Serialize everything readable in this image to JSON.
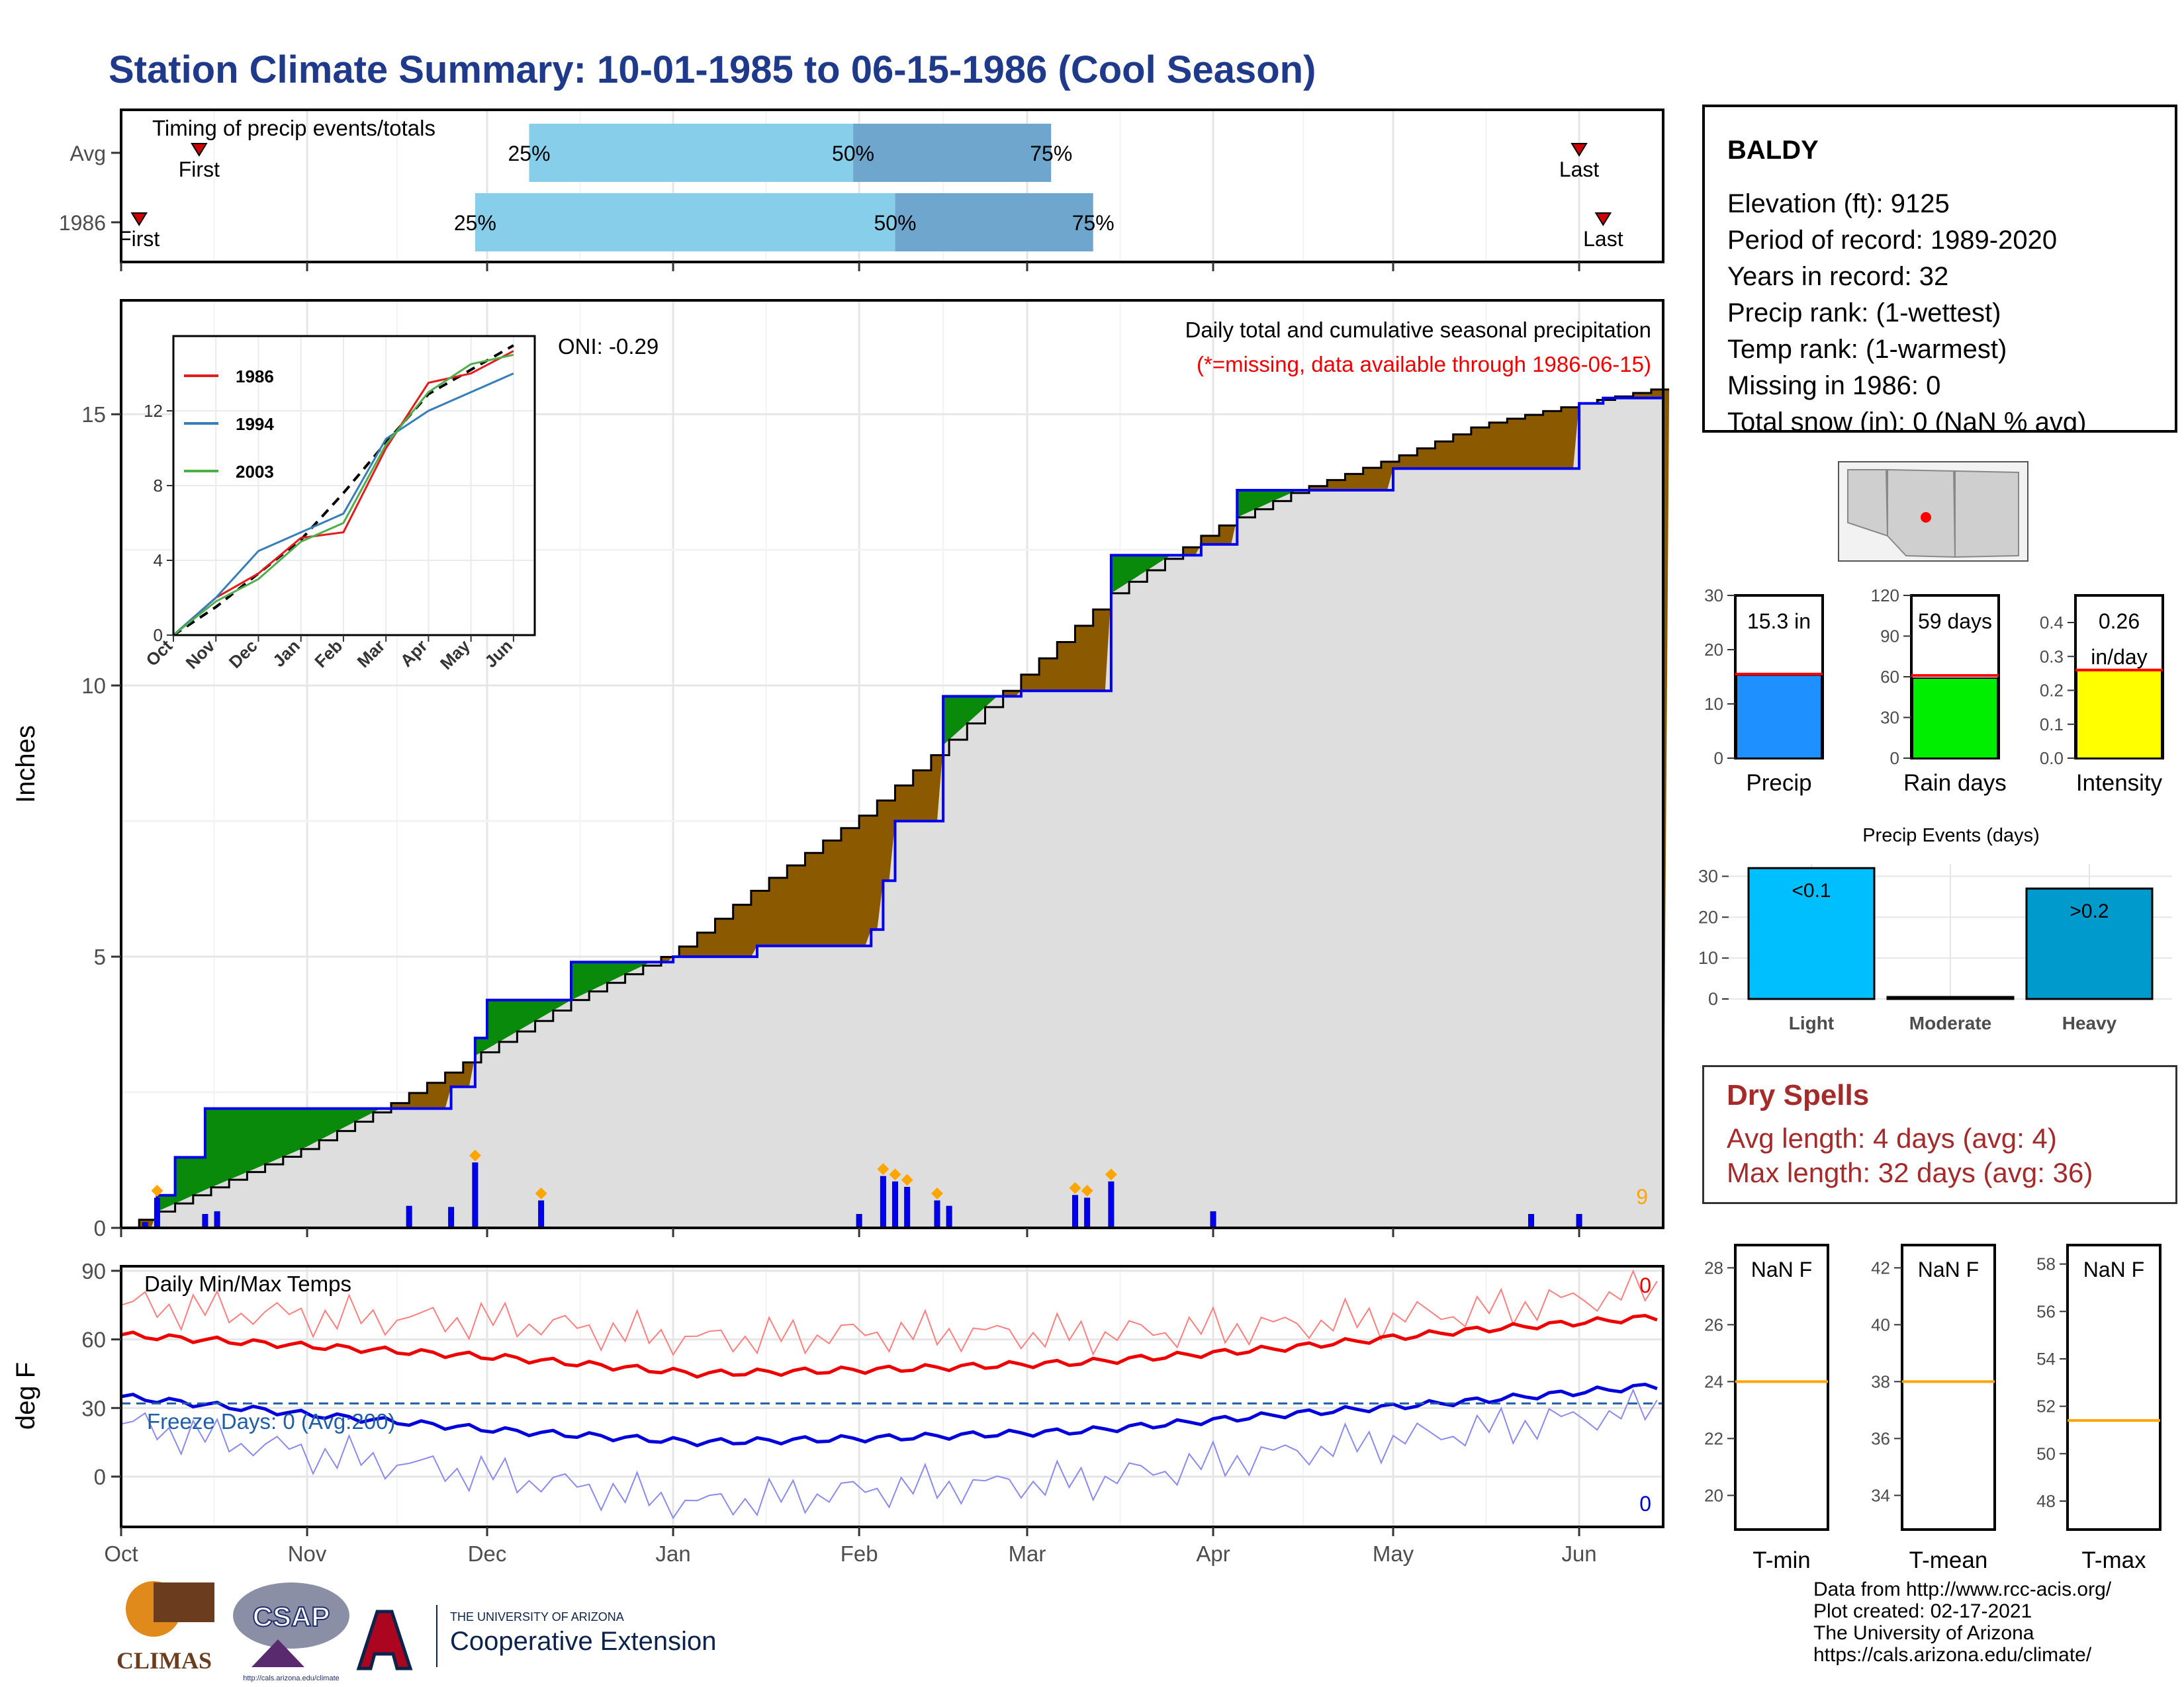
{
  "title": "Station Climate Summary: 10-01-1985 to 06-15-1986 (Cool Season)",
  "colors": {
    "title": "#1f3a8a",
    "brown_fill": "#8b5a00",
    "green_fill": "#0a8a0a",
    "grey_fill": "#dedede",
    "cum_line_avg": "#000000",
    "cum_line_year": "#0000ee",
    "daily_bar": "#0000ee",
    "event_marker": "#ffa500",
    "tmax": "#ee0000",
    "tmin": "#0000dd",
    "freeze": "#1f5fa8",
    "pct_light": "#87ceeb",
    "pct_dark": "#6fa6cd",
    "last_first_marker": "#cc0000",
    "precip_bar": "#1e90ff",
    "raindays_bar": "#00ee00",
    "intensity_bar": "#ffff00",
    "light_bar": "#00bfff",
    "heavy_bar": "#009acd",
    "ref_line": "#ff0000",
    "temp_ref": "#ffa500",
    "dry_text": "#a52a2a"
  },
  "timing_panel": {
    "label": "Timing of precip events/totals",
    "rows": [
      {
        "name": "Avg",
        "first_label": "First",
        "last_label": "Last",
        "pct25": "25%",
        "pct50": "50%",
        "pct75": "75%",
        "first_date": "1985-10-14",
        "last_date": "1986-06-01",
        "p25_date": "1985-12-08",
        "p50_date": "1986-01-31",
        "p75_date": "1986-03-05"
      },
      {
        "name": "1986",
        "first_label": "First",
        "last_label": "Last",
        "pct25": "25%",
        "pct50": "50%",
        "pct75": "75%",
        "first_date": "1985-10-04",
        "last_date": "1986-06-05",
        "p25_date": "1985-11-29",
        "p50_date": "1986-02-07",
        "p75_date": "1986-03-12"
      }
    ]
  },
  "main_chart": {
    "subtitle_1": "Daily total and cumulative seasonal precipitation",
    "subtitle_2": "(*=missing, data available through 1986-06-15)",
    "ylabel": "Inches",
    "yticks": [
      "0",
      "5",
      "10",
      "15"
    ],
    "ylim": [
      0,
      17.1
    ],
    "oni": "ONI: -0.29",
    "event_count": "9",
    "month_ticks": [
      "Oct",
      "Nov",
      "Dec",
      "Jan",
      "Feb",
      "Mar",
      "Apr",
      "May",
      "Jun"
    ]
  },
  "chart_data": [
    {
      "type": "area",
      "title": "Daily total and cumulative seasonal precipitation",
      "ylabel": "Inches",
      "ylim": [
        0,
        17.1
      ],
      "series": [
        {
          "name": "average cumulative",
          "x": [
            "1985-10-01",
            "1985-10-15",
            "1985-11-01",
            "1985-11-15",
            "1985-12-01",
            "1985-12-15",
            "1986-01-01",
            "1986-01-15",
            "1986-02-01",
            "1986-02-15",
            "1986-03-01",
            "1986-03-15",
            "1986-04-01",
            "1986-04-15",
            "1986-05-01",
            "1986-05-15",
            "1986-06-01",
            "1986-06-15"
          ],
          "values": [
            0.0,
            0.7,
            1.5,
            2.3,
            3.3,
            4.2,
            5.1,
            6.3,
            7.6,
            8.9,
            10.3,
            11.7,
            12.9,
            13.6,
            14.2,
            14.8,
            15.2,
            15.5
          ]
        },
        {
          "name": "1986 cumulative",
          "x": [
            "1985-10-01",
            "1985-10-07",
            "1985-10-10",
            "1985-10-15",
            "1985-10-25",
            "1985-11-15",
            "1985-11-25",
            "1985-11-29",
            "1985-12-01",
            "1985-12-10",
            "1985-12-15",
            "1985-12-25",
            "1986-01-01",
            "1986-01-15",
            "1986-02-03",
            "1986-02-05",
            "1986-02-07",
            "1986-02-15",
            "1986-02-28",
            "1986-03-01",
            "1986-03-10",
            "1986-03-15",
            "1986-03-30",
            "1986-04-05",
            "1986-05-01",
            "1986-05-25",
            "1986-06-01",
            "1986-06-05",
            "1986-06-15"
          ],
          "values": [
            0.0,
            0.6,
            1.3,
            2.2,
            2.2,
            2.2,
            2.6,
            3.5,
            4.2,
            4.2,
            4.9,
            4.9,
            5.0,
            5.2,
            5.5,
            6.4,
            7.5,
            9.8,
            9.9,
            9.9,
            9.9,
            12.4,
            12.6,
            13.6,
            14.0,
            14.0,
            15.2,
            15.3,
            15.3
          ]
        },
        {
          "name": "daily precip",
          "x": [
            "1985-10-05",
            "1985-10-07",
            "1985-10-15",
            "1985-10-17",
            "1985-11-18",
            "1985-11-25",
            "1985-11-29",
            "1985-12-10",
            "1986-02-01",
            "1986-02-05",
            "1986-02-07",
            "1986-02-09",
            "1986-02-14",
            "1986-02-16",
            "1986-03-09",
            "1986-03-11",
            "1986-03-15",
            "1986-04-01",
            "1986-05-24",
            "1986-06-01"
          ],
          "values": [
            0.1,
            0.55,
            0.25,
            0.3,
            0.4,
            0.38,
            1.2,
            0.5,
            0.25,
            0.95,
            0.85,
            0.75,
            0.5,
            0.4,
            0.6,
            0.55,
            0.85,
            0.3,
            0.25,
            0.25
          ]
        }
      ]
    },
    {
      "type": "line",
      "title": "",
      "categories": [
        "Oct",
        "Nov",
        "Dec",
        "Jan",
        "Feb",
        "Mar",
        "Apr",
        "May",
        "Jun"
      ],
      "yticks": [
        "0",
        "4",
        "8",
        "12"
      ],
      "ylim": [
        0,
        16
      ],
      "legend": "top-left",
      "series": [
        {
          "name": "",
          "values": [
            0.0,
            1.5,
            3.3,
            5.1,
            7.6,
            10.3,
            12.9,
            14.2,
            15.5
          ]
        },
        {
          "name": "1986",
          "values": [
            0.0,
            2.0,
            3.3,
            5.2,
            5.5,
            10.0,
            13.5,
            14.0,
            15.2
          ]
        },
        {
          "name": "1994",
          "values": [
            0.0,
            2.0,
            4.5,
            5.5,
            6.5,
            10.5,
            12.0,
            13.0,
            14.0
          ]
        },
        {
          "name": "2003",
          "values": [
            0.0,
            1.8,
            3.0,
            5.0,
            6.0,
            10.2,
            13.0,
            14.5,
            15.0
          ]
        }
      ]
    },
    {
      "type": "line",
      "title": "Daily Min/Max Temps",
      "ylabel": "deg F",
      "ylim": [
        -22,
        92
      ],
      "categories": [
        "Oct",
        "Nov",
        "Dec",
        "Jan",
        "Feb",
        "Mar",
        "Apr",
        "May",
        "Jun"
      ],
      "yticks": [
        "0",
        "30",
        "60",
        "90"
      ],
      "freeze_label": "Freeze Days: 0 (Avg:200)",
      "count_max": "0",
      "count_min": "0",
      "freeze_line": 32,
      "series": [
        {
          "name": "",
          "values": [
            75,
            70,
            68,
            60,
            63,
            62,
            66,
            72,
            82
          ]
        },
        {
          "name": "",
          "values": [
            62,
            57,
            52,
            45,
            47,
            50,
            56,
            64,
            70
          ]
        },
        {
          "name": "",
          "values": [
            35,
            27,
            20,
            15,
            17,
            20,
            27,
            33,
            40
          ]
        },
        {
          "name": "",
          "values": [
            23,
            10,
            0,
            -12,
            -5,
            -2,
            10,
            20,
            30
          ]
        }
      ]
    },
    {
      "type": "bar",
      "title": "",
      "categories": [
        "Precip",
        "Rain days",
        "Intensity"
      ],
      "series": [
        {
          "name": "",
          "values": [
            15.3,
            59,
            0.26
          ],
          "ylim": [
            [
              0,
              30
            ],
            [
              0,
              120
            ],
            [
              0,
              0.48
            ]
          ],
          "avg_line": [
            15.5,
            61,
            0.26
          ]
        }
      ]
    },
    {
      "type": "bar",
      "title": "Precip Events (days)",
      "categories": [
        "Light",
        "Moderate",
        "Heavy"
      ],
      "values": [
        32,
        0,
        27
      ],
      "ylim": [
        0,
        33
      ]
    }
  ],
  "side_info": {
    "station": "BALDY",
    "lines": [
      "Elevation (ft): 9125",
      "Period of record: 1989-2020",
      "Years in record: 32",
      "Precip rank:  (1-wettest)",
      "Temp rank:  (1-warmest)",
      "Missing in 1986: 0",
      "Total snow (in): 0 (NaN % avg)"
    ]
  },
  "summary_bars": [
    {
      "label": "Precip",
      "value_text": "15.3 in",
      "yticks": [
        "0",
        "10",
        "20",
        "30"
      ]
    },
    {
      "label": "Rain days",
      "value_text": "59 days",
      "yticks": [
        "0",
        "30",
        "60",
        "90",
        "120"
      ]
    },
    {
      "label": "Intensity",
      "value_text": "0.26",
      "value_unit": "in/day",
      "yticks": [
        "0.0",
        "0.1",
        "0.2",
        "0.3",
        "0.4"
      ]
    }
  ],
  "events_panel": {
    "title": "Precip Events (days)",
    "yticks": [
      "0",
      "10",
      "20",
      "30"
    ],
    "bar_labels": [
      "<0.1",
      "",
      ">0.2"
    ]
  },
  "dry_spells": {
    "title": "Dry Spells",
    "avg_line": "Avg length: 4 days (avg: 4)",
    "max_line": "Max length: 32 days (avg: 36)"
  },
  "temp_ranks": [
    {
      "label": "T-min",
      "value_text": "NaN F",
      "yticks": [
        "20",
        "22",
        "24",
        "26",
        "28"
      ]
    },
    {
      "label": "T-mean",
      "value_text": "NaN F",
      "yticks": [
        "34",
        "36",
        "38",
        "40",
        "42"
      ]
    },
    {
      "label": "T-max",
      "value_text": "NaN F",
      "yticks": [
        "48",
        "50",
        "52",
        "54",
        "56",
        "58"
      ]
    }
  ],
  "logos": {
    "climas": "CLIMAS",
    "csap": "CSAP",
    "csap_url": "http://cals.arizona.edu/climate",
    "ua_top": "THE UNIVERSITY OF ARIZONA",
    "ua_bottom": "Cooperative Extension"
  },
  "footer": [
    "Data from http://www.rcc-acis.org/",
    "Plot created: 02-17-2021",
    "The University of Arizona",
    "https://cals.arizona.edu/climate/"
  ]
}
